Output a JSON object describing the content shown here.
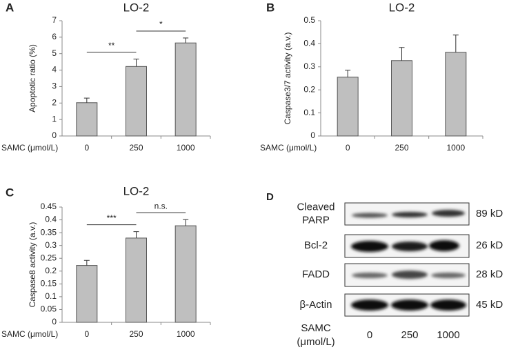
{
  "chart_data": [
    {
      "type": "bar",
      "panel": "A",
      "title": "LO-2",
      "ylabel": "Apoptotic ratio (%)",
      "xlabel": "SAMC (μmol/L)",
      "categories": [
        "0",
        "250",
        "1000"
      ],
      "values": [
        2.02,
        4.22,
        5.65
      ],
      "errors": [
        0.28,
        0.45,
        0.3
      ],
      "color": "#bfbfbf",
      "ylim": [
        0,
        7
      ],
      "yticks": [
        0,
        1,
        2,
        3,
        4,
        5,
        6,
        7
      ],
      "annotations": [
        "**",
        "*"
      ]
    },
    {
      "type": "bar",
      "panel": "B",
      "title": "LO-2",
      "ylabel": "Caspase3/7 activity (a.v.)",
      "xlabel": "SAMC (μmol/L)",
      "categories": [
        "0",
        "250",
        "1000"
      ],
      "values": [
        0.255,
        0.327,
        0.363
      ],
      "errors": [
        0.03,
        0.057,
        0.075
      ],
      "color": "#bfbfbf",
      "ylim": [
        0,
        0.5
      ],
      "yticks": [
        0,
        0.1,
        0.2,
        0.3,
        0.4,
        0.5
      ],
      "annotations": []
    },
    {
      "type": "bar",
      "panel": "C",
      "title": "LO-2",
      "ylabel": "Caspase8 activity (a.v.)",
      "xlabel": "SAMC (μmol/L)",
      "categories": [
        "0",
        "250",
        "1000"
      ],
      "values": [
        0.222,
        0.329,
        0.377
      ],
      "errors": [
        0.02,
        0.025,
        0.024
      ],
      "color": "#bfbfbf",
      "ylim": [
        0,
        0.45
      ],
      "yticks": [
        0,
        0.05,
        0.1,
        0.15,
        0.2,
        0.25,
        0.3,
        0.35,
        0.4,
        0.45
      ],
      "annotations": [
        "***",
        "n.s."
      ]
    }
  ],
  "blot": {
    "panel": "D",
    "rows": [
      {
        "label": [
          "Cleaved",
          "PARP"
        ],
        "size": "89 kD"
      },
      {
        "label": [
          "Bcl-2"
        ],
        "size": "26 kD"
      },
      {
        "label": [
          "FADD"
        ],
        "size": "28 kD"
      },
      {
        "label": [
          "β-Actin"
        ],
        "size": "45 kD"
      }
    ],
    "xlabel": [
      "SAMC",
      "(μmol/L)"
    ],
    "lanes": [
      "0",
      "250",
      "1000"
    ]
  }
}
